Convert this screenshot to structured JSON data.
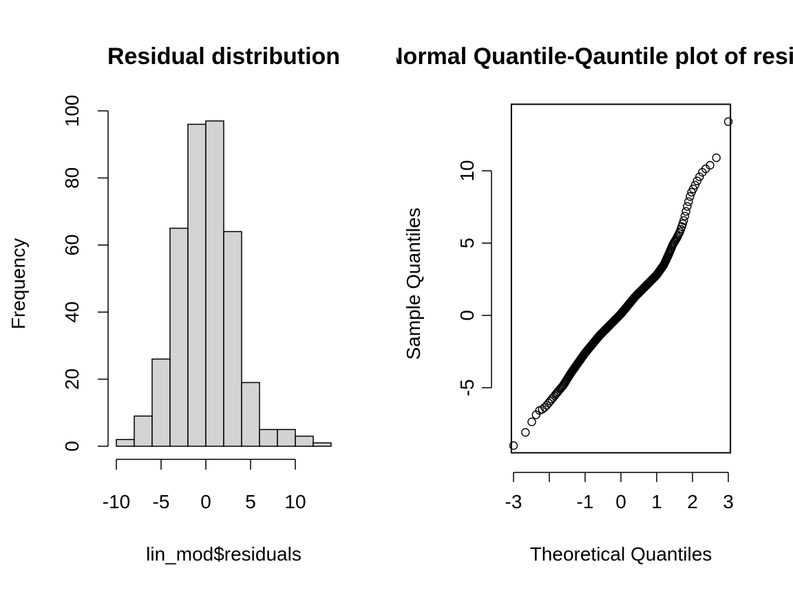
{
  "chart_data": [
    {
      "type": "bar",
      "title": "Residual distribution",
      "xlabel": "lin_mod$residuals",
      "ylabel": "Frequency",
      "bin_edges": [
        -10,
        -8,
        -6,
        -4,
        -2,
        0,
        2,
        4,
        6,
        8,
        10,
        12,
        14
      ],
      "values": [
        2,
        9,
        26,
        65,
        96,
        97,
        64,
        19,
        5,
        5,
        3,
        1
      ],
      "xlim": [
        -10,
        14
      ],
      "ylim": [
        0,
        100
      ],
      "x_ticks": [
        -10,
        -5,
        0,
        5,
        10
      ],
      "x_tick_labels": [
        "-10",
        "-5",
        "0",
        "5",
        "10"
      ],
      "y_ticks": [
        0,
        20,
        40,
        60,
        80,
        100
      ],
      "y_tick_labels": [
        "0",
        "20",
        "40",
        "60",
        "80",
        "100"
      ],
      "bar_fill": "#d3d3d3",
      "bar_stroke": "#000000",
      "grid": false
    },
    {
      "type": "scatter",
      "title": "Normal Quantile-Qauntile plot of residuals",
      "xlabel": "Theoretical Quantiles",
      "ylabel": "Sample Quantiles",
      "n": 392,
      "xlim": [
        -3.06,
        3.06
      ],
      "ylim": [
        -9.5,
        14.6
      ],
      "x_ticks": [
        -3,
        -2,
        -1,
        0,
        1,
        2,
        3
      ],
      "x_tick_labels": [
        "-3",
        "",
        "-1",
        "0",
        "1",
        "2",
        "3"
      ],
      "y_ticks": [
        -5,
        0,
        5,
        10
      ],
      "y_tick_labels": [
        "-5",
        "0",
        "5",
        "10"
      ],
      "grid": false,
      "quantile_curve": {
        "theoretical": [
          -3.0,
          -2.75,
          -2.6,
          -2.5,
          -2.4,
          -2.3,
          -2.2,
          -2.1,
          -2.0,
          -1.8,
          -1.6,
          -1.4,
          -1.2,
          -1.0,
          -0.8,
          -0.6,
          -0.4,
          -0.2,
          0.0,
          0.2,
          0.4,
          0.6,
          0.8,
          1.0,
          1.2,
          1.35,
          1.45,
          1.55,
          1.65,
          1.75,
          1.85,
          1.95,
          2.05,
          2.15,
          2.3,
          2.5,
          2.7,
          3.0
        ],
        "sample": [
          -9.0,
          -8.2,
          -8.0,
          -7.4,
          -7.0,
          -6.6,
          -6.5,
          -6.3,
          -6.0,
          -5.4,
          -4.8,
          -4.0,
          -3.3,
          -2.6,
          -2.0,
          -1.4,
          -0.9,
          -0.4,
          0.1,
          0.7,
          1.3,
          1.8,
          2.3,
          2.8,
          3.5,
          4.3,
          4.9,
          5.3,
          5.8,
          6.5,
          7.5,
          8.4,
          8.9,
          9.4,
          10.0,
          10.4,
          11.0,
          13.4
        ]
      }
    }
  ]
}
